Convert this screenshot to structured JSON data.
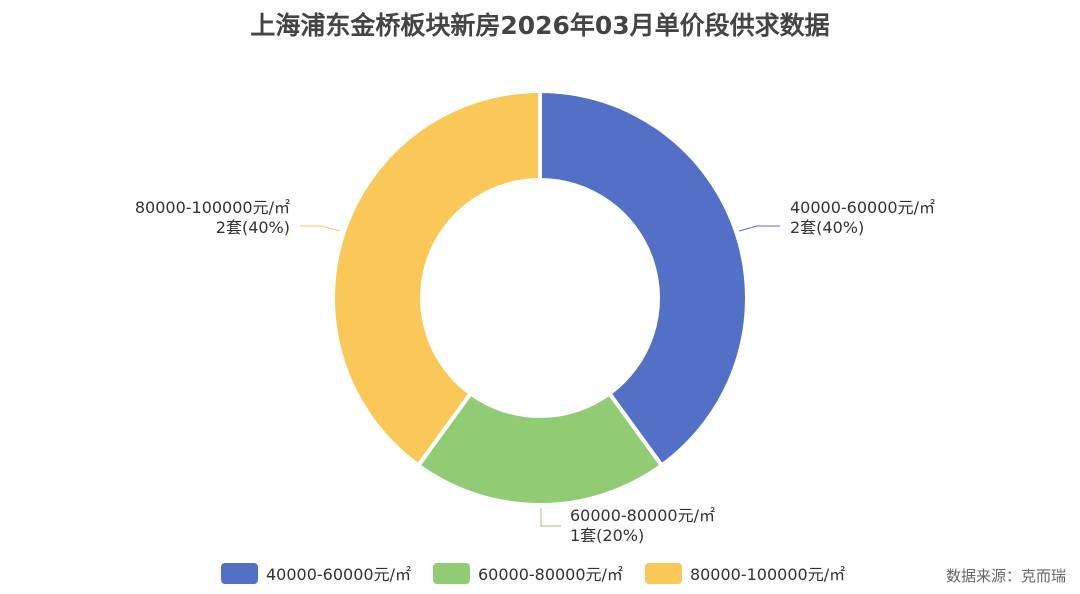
{
  "title": "上海浦东金桥板块新房2026年03月单价段供求数据",
  "source": "数据来源：克而瑞",
  "chart_data": {
    "type": "pie",
    "variant": "donut",
    "title": "上海浦东金桥板块新房2026年03月单价段供求数据",
    "categories": [
      "40000-60000元/㎡",
      "60000-80000元/㎡",
      "80000-100000元/㎡"
    ],
    "values": [
      2,
      1,
      2
    ],
    "value_labels": [
      "2套(40%)",
      "1套(20%)",
      "2套(40%)"
    ],
    "colors": [
      "#5470c6",
      "#91cc75",
      "#fac858"
    ],
    "legend_position": "bottom"
  }
}
